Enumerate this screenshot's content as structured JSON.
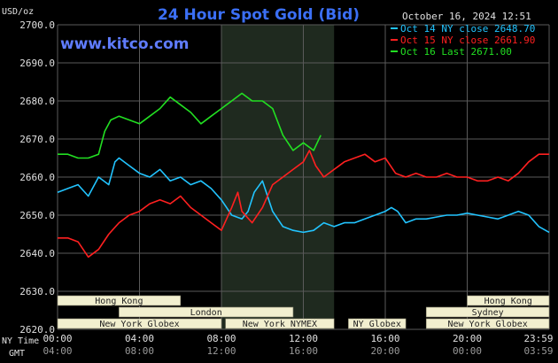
{
  "header": {
    "title": "24 Hour Spot Gold (Bid)",
    "unit": "USD/oz",
    "datetime": "October 16, 2024 12:51",
    "site": "www.kitco.com"
  },
  "colors": {
    "background": "#000000",
    "grid": "#5a5a5a",
    "text": "#e0e0e0",
    "title": "#3b6ff5",
    "site": "#5f7cff",
    "highlight": "#1f2a1f",
    "session_fill": "#f2efcf",
    "session_text": "#222222"
  },
  "time_axis": {
    "ny_label": "NY Time",
    "gmt_label": "GMT",
    "ny_ticks": [
      "00:00",
      "04:00",
      "08:00",
      "12:00",
      "16:00",
      "20:00",
      "23:59"
    ],
    "gmt_ticks": [
      "04:00",
      "08:00",
      "12:00",
      "16:00",
      "20:00",
      "00:00",
      "03:59"
    ]
  },
  "sessions": [
    {
      "label": "Hong Kong",
      "row": 0,
      "start": 0,
      "end": 6
    },
    {
      "label": "London",
      "row": 1,
      "start": 3,
      "end": 11.5
    },
    {
      "label": "New York Globex",
      "row": 2,
      "start": 0,
      "end": 8
    },
    {
      "label": "New York NYMEX",
      "row": 2,
      "start": 8.2,
      "end": 13.5
    },
    {
      "label": "NY Globex",
      "row": 2,
      "start": 14.2,
      "end": 17
    },
    {
      "label": "Hong Kong",
      "row": 0,
      "start": 20,
      "end": 24
    },
    {
      "label": "Sydney",
      "row": 1,
      "start": 18,
      "end": 24
    },
    {
      "label": "New York Globex",
      "row": 2,
      "start": 18,
      "end": 24
    }
  ],
  "chart_data": {
    "type": "line",
    "title": "24 Hour Spot Gold (Bid)",
    "ylabel": "USD/oz",
    "ylim": [
      2620,
      2700
    ],
    "yticks": [
      2620,
      2630,
      2640,
      2650,
      2660,
      2670,
      2680,
      2690,
      2700
    ],
    "xlim": [
      0,
      24
    ],
    "highlight": [
      8,
      13.5
    ],
    "grid": true,
    "legend_position": "top-right",
    "series": [
      {
        "name": "Oct 14 NY close 2648.70",
        "color": "#22c4ff",
        "x": [
          0,
          0.5,
          1,
          1.5,
          2,
          2.5,
          2.8,
          3,
          3.5,
          4,
          4.5,
          5,
          5.5,
          6,
          6.5,
          7,
          7.5,
          8,
          8.5,
          9,
          9.3,
          9.6,
          10,
          10.5,
          11,
          11.5,
          12,
          12.5,
          13,
          13.5,
          14,
          14.5,
          15,
          15.5,
          16,
          16.3,
          16.6,
          17,
          17.5,
          18,
          18.5,
          19,
          19.5,
          20,
          20.5,
          21,
          21.5,
          22,
          22.5,
          23,
          23.5,
          24
        ],
        "values": [
          2656,
          2657,
          2658,
          2655,
          2660,
          2658,
          2664,
          2665,
          2663,
          2661,
          2660,
          2662,
          2659,
          2660,
          2658,
          2659,
          2657,
          2654,
          2650,
          2649,
          2651,
          2656,
          2659,
          2651,
          2647,
          2646,
          2645.5,
          2646,
          2648,
          2647,
          2648,
          2648,
          2649,
          2650,
          2651,
          2652,
          2651,
          2648,
          2649,
          2649,
          2649.5,
          2650,
          2650,
          2650.5,
          2650,
          2649.5,
          2649,
          2650,
          2651,
          2650,
          2647,
          2645.5
        ]
      },
      {
        "name": "Oct 15 NY close 2661.90",
        "color": "#ff2020",
        "x": [
          0,
          0.5,
          1,
          1.5,
          2,
          2.5,
          3,
          3.5,
          4,
          4.5,
          5,
          5.5,
          6,
          6.5,
          7,
          7.5,
          8,
          8.5,
          8.8,
          9,
          9.5,
          10,
          10.5,
          11,
          11.5,
          12,
          12.3,
          12.6,
          13,
          13.5,
          14,
          14.5,
          15,
          15.5,
          16,
          16.5,
          17,
          17.5,
          18,
          18.5,
          19,
          19.5,
          20,
          20.5,
          21,
          21.5,
          22,
          22.5,
          23,
          23.5,
          24
        ],
        "values": [
          2644,
          2644,
          2643,
          2639,
          2641,
          2645,
          2648,
          2650,
          2651,
          2653,
          2654,
          2653,
          2655,
          2652,
          2650,
          2648,
          2646,
          2652,
          2656,
          2651,
          2648,
          2652,
          2658,
          2660,
          2662,
          2664,
          2667,
          2663,
          2660,
          2662,
          2664,
          2665,
          2666,
          2664,
          2665,
          2661,
          2660,
          2661,
          2660,
          2660,
          2661,
          2660,
          2660,
          2659,
          2659,
          2660,
          2659,
          2661,
          2664,
          2666,
          2666
        ]
      },
      {
        "name": "Oct 16 Last 2671.00",
        "color": "#22e022",
        "x": [
          0,
          0.5,
          1,
          1.5,
          2,
          2.3,
          2.6,
          3,
          3.5,
          4,
          4.5,
          5,
          5.5,
          6,
          6.5,
          7,
          7.5,
          8,
          8.5,
          9,
          9.5,
          10,
          10.5,
          11,
          11.5,
          12,
          12.5,
          12.85
        ],
        "values": [
          2666,
          2666,
          2665,
          2665,
          2666,
          2672,
          2675,
          2676,
          2675,
          2674,
          2676,
          2678,
          2681,
          2679,
          2677,
          2674,
          2676,
          2678,
          2680,
          2682,
          2680,
          2680,
          2678,
          2671,
          2667,
          2669,
          2667,
          2671
        ]
      }
    ]
  }
}
